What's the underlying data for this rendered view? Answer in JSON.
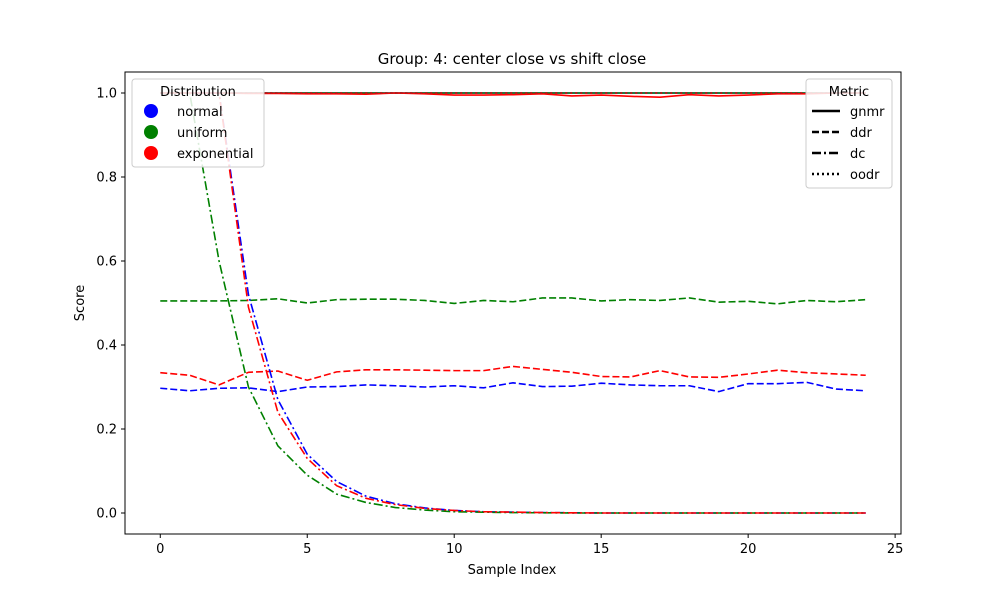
{
  "chart_data": {
    "type": "line",
    "title": "Group: 4: center close vs shift close",
    "xlabel": "Sample Index",
    "ylabel": "Score",
    "xlim": [
      -1.2,
      25.2
    ],
    "ylim": [
      -0.05,
      1.05
    ],
    "xticks": [
      0,
      5,
      10,
      15,
      20,
      25
    ],
    "yticks": [
      0.0,
      0.2,
      0.4,
      0.6,
      0.8,
      1.0
    ],
    "ytick_labels": [
      "0.0",
      "0.2",
      "0.4",
      "0.6",
      "0.8",
      "1.0"
    ],
    "grid": false,
    "x": [
      0,
      1,
      2,
      3,
      4,
      5,
      6,
      7,
      8,
      9,
      10,
      11,
      12,
      13,
      14,
      15,
      16,
      17,
      18,
      19,
      20,
      21,
      22,
      23,
      24
    ],
    "legends": [
      {
        "title": "Distribution",
        "position": "top-left",
        "entries": [
          {
            "label": "normal",
            "color": "#0000ff"
          },
          {
            "label": "uniform",
            "color": "#008000"
          },
          {
            "label": "exponential",
            "color": "#ff0000"
          }
        ]
      },
      {
        "title": "Metric",
        "position": "top-right",
        "entries": [
          {
            "label": "gnmr",
            "dash": "solid"
          },
          {
            "label": "ddr",
            "dash": "dashed"
          },
          {
            "label": "dc",
            "dash": "dashdot"
          },
          {
            "label": "oodr",
            "dash": "dotted"
          }
        ]
      }
    ],
    "series": [
      {
        "distribution": "normal",
        "metric": "gnmr",
        "color": "#0000ff",
        "dash": "solid",
        "values": [
          1,
          1,
          1,
          1,
          1,
          1,
          1,
          1,
          1,
          1,
          1,
          1,
          1,
          1,
          1,
          1,
          1,
          1,
          1,
          1,
          1,
          1,
          1,
          1,
          1
        ]
      },
      {
        "distribution": "uniform",
        "metric": "gnmr",
        "color": "#008000",
        "dash": "solid",
        "values": [
          1,
          1,
          1,
          1,
          1,
          1,
          1,
          1,
          1,
          1,
          1,
          1,
          1,
          1,
          1,
          1,
          1,
          1,
          1,
          1,
          1,
          1,
          1,
          1,
          1
        ]
      },
      {
        "distribution": "exponential",
        "metric": "gnmr",
        "color": "#ff0000",
        "dash": "solid",
        "values": [
          1,
          1,
          1,
          0.999,
          0.999,
          0.998,
          0.998,
          0.997,
          1,
          0.998,
          0.995,
          0.995,
          0.996,
          0.998,
          0.993,
          0.995,
          0.992,
          0.99,
          0.996,
          0.993,
          0.995,
          0.998,
          0.998,
          1,
          1
        ]
      },
      {
        "distribution": "normal",
        "metric": "oodr",
        "color": "#0000ff",
        "dash": "dotted",
        "values": [
          1,
          1,
          1,
          1,
          1,
          1,
          1,
          1,
          1,
          1,
          1,
          1,
          1,
          1,
          1,
          1,
          1,
          1,
          1,
          1,
          1,
          1,
          1,
          1,
          1
        ]
      },
      {
        "distribution": "uniform",
        "metric": "oodr",
        "color": "#008000",
        "dash": "dotted",
        "values": [
          1,
          1,
          1,
          1,
          1,
          1,
          1,
          1,
          1,
          1,
          1,
          1,
          1,
          1,
          1,
          1,
          1,
          1,
          1,
          1,
          1,
          1,
          1,
          1,
          1
        ]
      },
      {
        "distribution": "exponential",
        "metric": "oodr",
        "color": "#ff0000",
        "dash": "dotted",
        "values": [
          1,
          1,
          1,
          1,
          1,
          1,
          1,
          1,
          1,
          1,
          1,
          1,
          1,
          1,
          1,
          1,
          1,
          1,
          1,
          1,
          1,
          1,
          1,
          1,
          1
        ]
      },
      {
        "distribution": "normal",
        "metric": "ddr",
        "color": "#0000ff",
        "dash": "dashed",
        "values": [
          0.297,
          0.291,
          0.297,
          0.298,
          0.289,
          0.3,
          0.301,
          0.305,
          0.303,
          0.3,
          0.303,
          0.298,
          0.31,
          0.301,
          0.302,
          0.309,
          0.305,
          0.303,
          0.303,
          0.289,
          0.308,
          0.308,
          0.311,
          0.295,
          0.291
        ]
      },
      {
        "distribution": "uniform",
        "metric": "ddr",
        "color": "#008000",
        "dash": "dashed",
        "values": [
          0.505,
          0.505,
          0.505,
          0.506,
          0.51,
          0.5,
          0.508,
          0.509,
          0.509,
          0.506,
          0.499,
          0.506,
          0.503,
          0.512,
          0.512,
          0.505,
          0.508,
          0.506,
          0.512,
          0.502,
          0.504,
          0.498,
          0.506,
          0.503,
          0.508
        ]
      },
      {
        "distribution": "exponential",
        "metric": "ddr",
        "color": "#ff0000",
        "dash": "dashed",
        "values": [
          0.334,
          0.328,
          0.305,
          0.335,
          0.338,
          0.316,
          0.336,
          0.341,
          0.341,
          0.34,
          0.339,
          0.339,
          0.349,
          0.342,
          0.335,
          0.325,
          0.324,
          0.339,
          0.324,
          0.323,
          0.331,
          0.34,
          0.334,
          0.331,
          0.328
        ]
      },
      {
        "distribution": "normal",
        "metric": "dc",
        "color": "#0000ff",
        "dash": "dashdot",
        "values": [
          1,
          1,
          1,
          0.52,
          0.27,
          0.14,
          0.075,
          0.04,
          0.022,
          0.012,
          0.006,
          0.003,
          0.002,
          0.001,
          0.0005,
          0,
          0,
          0,
          0,
          0,
          0,
          0,
          0,
          0,
          0
        ]
      },
      {
        "distribution": "uniform",
        "metric": "dc",
        "color": "#008000",
        "dash": "dashdot",
        "values": [
          1,
          1,
          0.6,
          0.3,
          0.16,
          0.09,
          0.045,
          0.025,
          0.013,
          0.007,
          0.003,
          0.002,
          0.001,
          0.0005,
          0,
          0,
          0,
          0,
          0,
          0,
          0,
          0,
          0,
          0,
          0
        ]
      },
      {
        "distribution": "exponential",
        "metric": "dc",
        "color": "#ff0000",
        "dash": "dashdot",
        "values": [
          1,
          1,
          1,
          0.49,
          0.24,
          0.13,
          0.065,
          0.035,
          0.02,
          0.011,
          0.006,
          0.003,
          0.002,
          0.001,
          0.0005,
          0,
          0,
          0,
          0,
          0,
          0,
          0,
          0,
          0,
          0
        ]
      }
    ]
  }
}
